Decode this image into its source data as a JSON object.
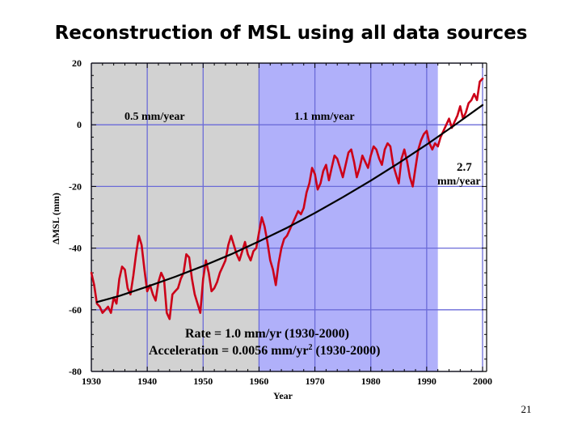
{
  "slide": {
    "title": "Reconstruction of MSL using all data sources",
    "page_number": "21"
  },
  "colors": {
    "grey_band": "#d2d2d2",
    "blue_band": "#b0b0fa",
    "grid": "#6b6bd8",
    "msl_series": "#cc0018",
    "trend_series": "#000000"
  },
  "chart_data": {
    "type": "line",
    "title": "Reconstruction of MSL using all data sources",
    "xlabel": "Year",
    "ylabel": "ΔMSL (mm)",
    "xlim": [
      1930,
      2000
    ],
    "ylim": [
      -80,
      20
    ],
    "x_ticks": [
      1930,
      1940,
      1950,
      1960,
      1970,
      1980,
      1990,
      2000
    ],
    "y_ticks": [
      -80,
      -60,
      -40,
      -20,
      0,
      20
    ],
    "grid": true,
    "shaded_periods": [
      {
        "name": "grey period",
        "x_start": 1930,
        "x_end": 1960,
        "color": "#d2d2d2"
      },
      {
        "name": "blue period",
        "x_start": 1960,
        "x_end": 1992,
        "color": "#b0b0fa"
      }
    ],
    "annotations": {
      "rate_early": "0.5 mm/year",
      "rate_mid": "1.1 mm/year",
      "rate_late_1": "2.7",
      "rate_late_2": "mm/year",
      "rate_overall": "Rate = 1.0 mm/yr (1930-2000)",
      "acceleration_prefix": "Acceleration = 0.0056 mm/yr",
      "acceleration_sup": "2",
      "acceleration_suffix": " (1930-2000)"
    },
    "series": [
      {
        "name": "MSL reconstruction",
        "color": "#cc0018",
        "x": [
          1930.0,
          1930.5,
          1931.0,
          1931.5,
          1932.0,
          1932.5,
          1933.0,
          1933.5,
          1934.0,
          1934.5,
          1935.0,
          1935.5,
          1936.0,
          1936.5,
          1937.0,
          1937.5,
          1938.0,
          1938.5,
          1939.0,
          1939.5,
          1940.0,
          1940.5,
          1941.0,
          1941.5,
          1942.0,
          1942.5,
          1943.0,
          1943.5,
          1944.0,
          1944.5,
          1945.0,
          1945.5,
          1946.0,
          1946.5,
          1947.0,
          1947.5,
          1948.0,
          1948.5,
          1949.0,
          1949.5,
          1950.0,
          1950.5,
          1951.0,
          1951.5,
          1952.0,
          1952.5,
          1953.0,
          1953.5,
          1954.0,
          1954.5,
          1955.0,
          1955.5,
          1956.0,
          1956.5,
          1957.0,
          1957.5,
          1958.0,
          1958.5,
          1959.0,
          1959.5,
          1960.0,
          1960.5,
          1961.0,
          1961.5,
          1962.0,
          1962.5,
          1963.0,
          1963.5,
          1964.0,
          1964.5,
          1965.0,
          1965.5,
          1966.0,
          1966.5,
          1967.0,
          1967.5,
          1968.0,
          1968.5,
          1969.0,
          1969.5,
          1970.0,
          1970.5,
          1971.0,
          1971.5,
          1972.0,
          1972.5,
          1973.0,
          1973.5,
          1974.0,
          1974.5,
          1975.0,
          1975.5,
          1976.0,
          1976.5,
          1977.0,
          1977.5,
          1978.0,
          1978.5,
          1979.0,
          1979.5,
          1980.0,
          1980.5,
          1981.0,
          1981.5,
          1982.0,
          1982.5,
          1983.0,
          1983.5,
          1984.0,
          1984.5,
          1985.0,
          1985.5,
          1986.0,
          1986.5,
          1987.0,
          1987.5,
          1988.0,
          1988.5,
          1989.0,
          1989.5,
          1990.0,
          1990.5,
          1991.0,
          1991.5,
          1992.0,
          1992.5,
          1993.0,
          1993.5,
          1994.0,
          1994.5,
          1995.0,
          1995.5,
          1996.0,
          1996.5,
          1997.0,
          1997.5,
          1998.0,
          1998.5,
          1999.0,
          1999.5,
          2000.0
        ],
        "values": [
          -48,
          -52,
          -58,
          -59,
          -61,
          -60,
          -59,
          -61,
          -56,
          -58,
          -50,
          -46,
          -47,
          -53,
          -55,
          -49,
          -42,
          -36,
          -39,
          -47,
          -54,
          -52,
          -55,
          -57,
          -51,
          -48,
          -50,
          -61,
          -63,
          -55,
          -54,
          -53,
          -50,
          -48,
          -42,
          -43,
          -50,
          -55,
          -58,
          -61,
          -50,
          -44,
          -48,
          -54,
          -53,
          -51,
          -48,
          -46,
          -44,
          -39,
          -36,
          -39,
          -42,
          -44,
          -41,
          -38,
          -42,
          -44,
          -41,
          -40,
          -35,
          -30,
          -33,
          -38,
          -44,
          -47,
          -52,
          -45,
          -40,
          -37,
          -36,
          -34,
          -32,
          -30,
          -28,
          -29,
          -27,
          -22,
          -19,
          -14,
          -16,
          -21,
          -19,
          -15,
          -13,
          -18,
          -14,
          -10,
          -11,
          -14,
          -17,
          -13,
          -9,
          -8,
          -12,
          -17,
          -14,
          -10,
          -12,
          -14,
          -10,
          -7,
          -8,
          -11,
          -13,
          -8,
          -6,
          -7,
          -13,
          -16,
          -19,
          -11,
          -8,
          -12,
          -17,
          -20,
          -14,
          -8,
          -5,
          -3,
          -2,
          -6,
          -8,
          -6,
          -7,
          -4,
          -2,
          0,
          2,
          -1,
          1,
          3,
          6,
          2,
          4,
          7,
          8,
          10,
          8,
          14,
          15
        ]
      },
      {
        "name": "Quadratic trend",
        "color": "#000000",
        "x": [
          1931,
          1935,
          1940,
          1945,
          1950,
          1955,
          1960,
          1965,
          1970,
          1975,
          1980,
          1985,
          1990,
          1995,
          2000
        ],
        "values": [
          -57.5,
          -55.5,
          -52.5,
          -49.3,
          -45.8,
          -42.0,
          -37.8,
          -33.4,
          -28.6,
          -23.5,
          -18.1,
          -12.4,
          -6.4,
          -0.1,
          6.4
        ]
      }
    ]
  }
}
